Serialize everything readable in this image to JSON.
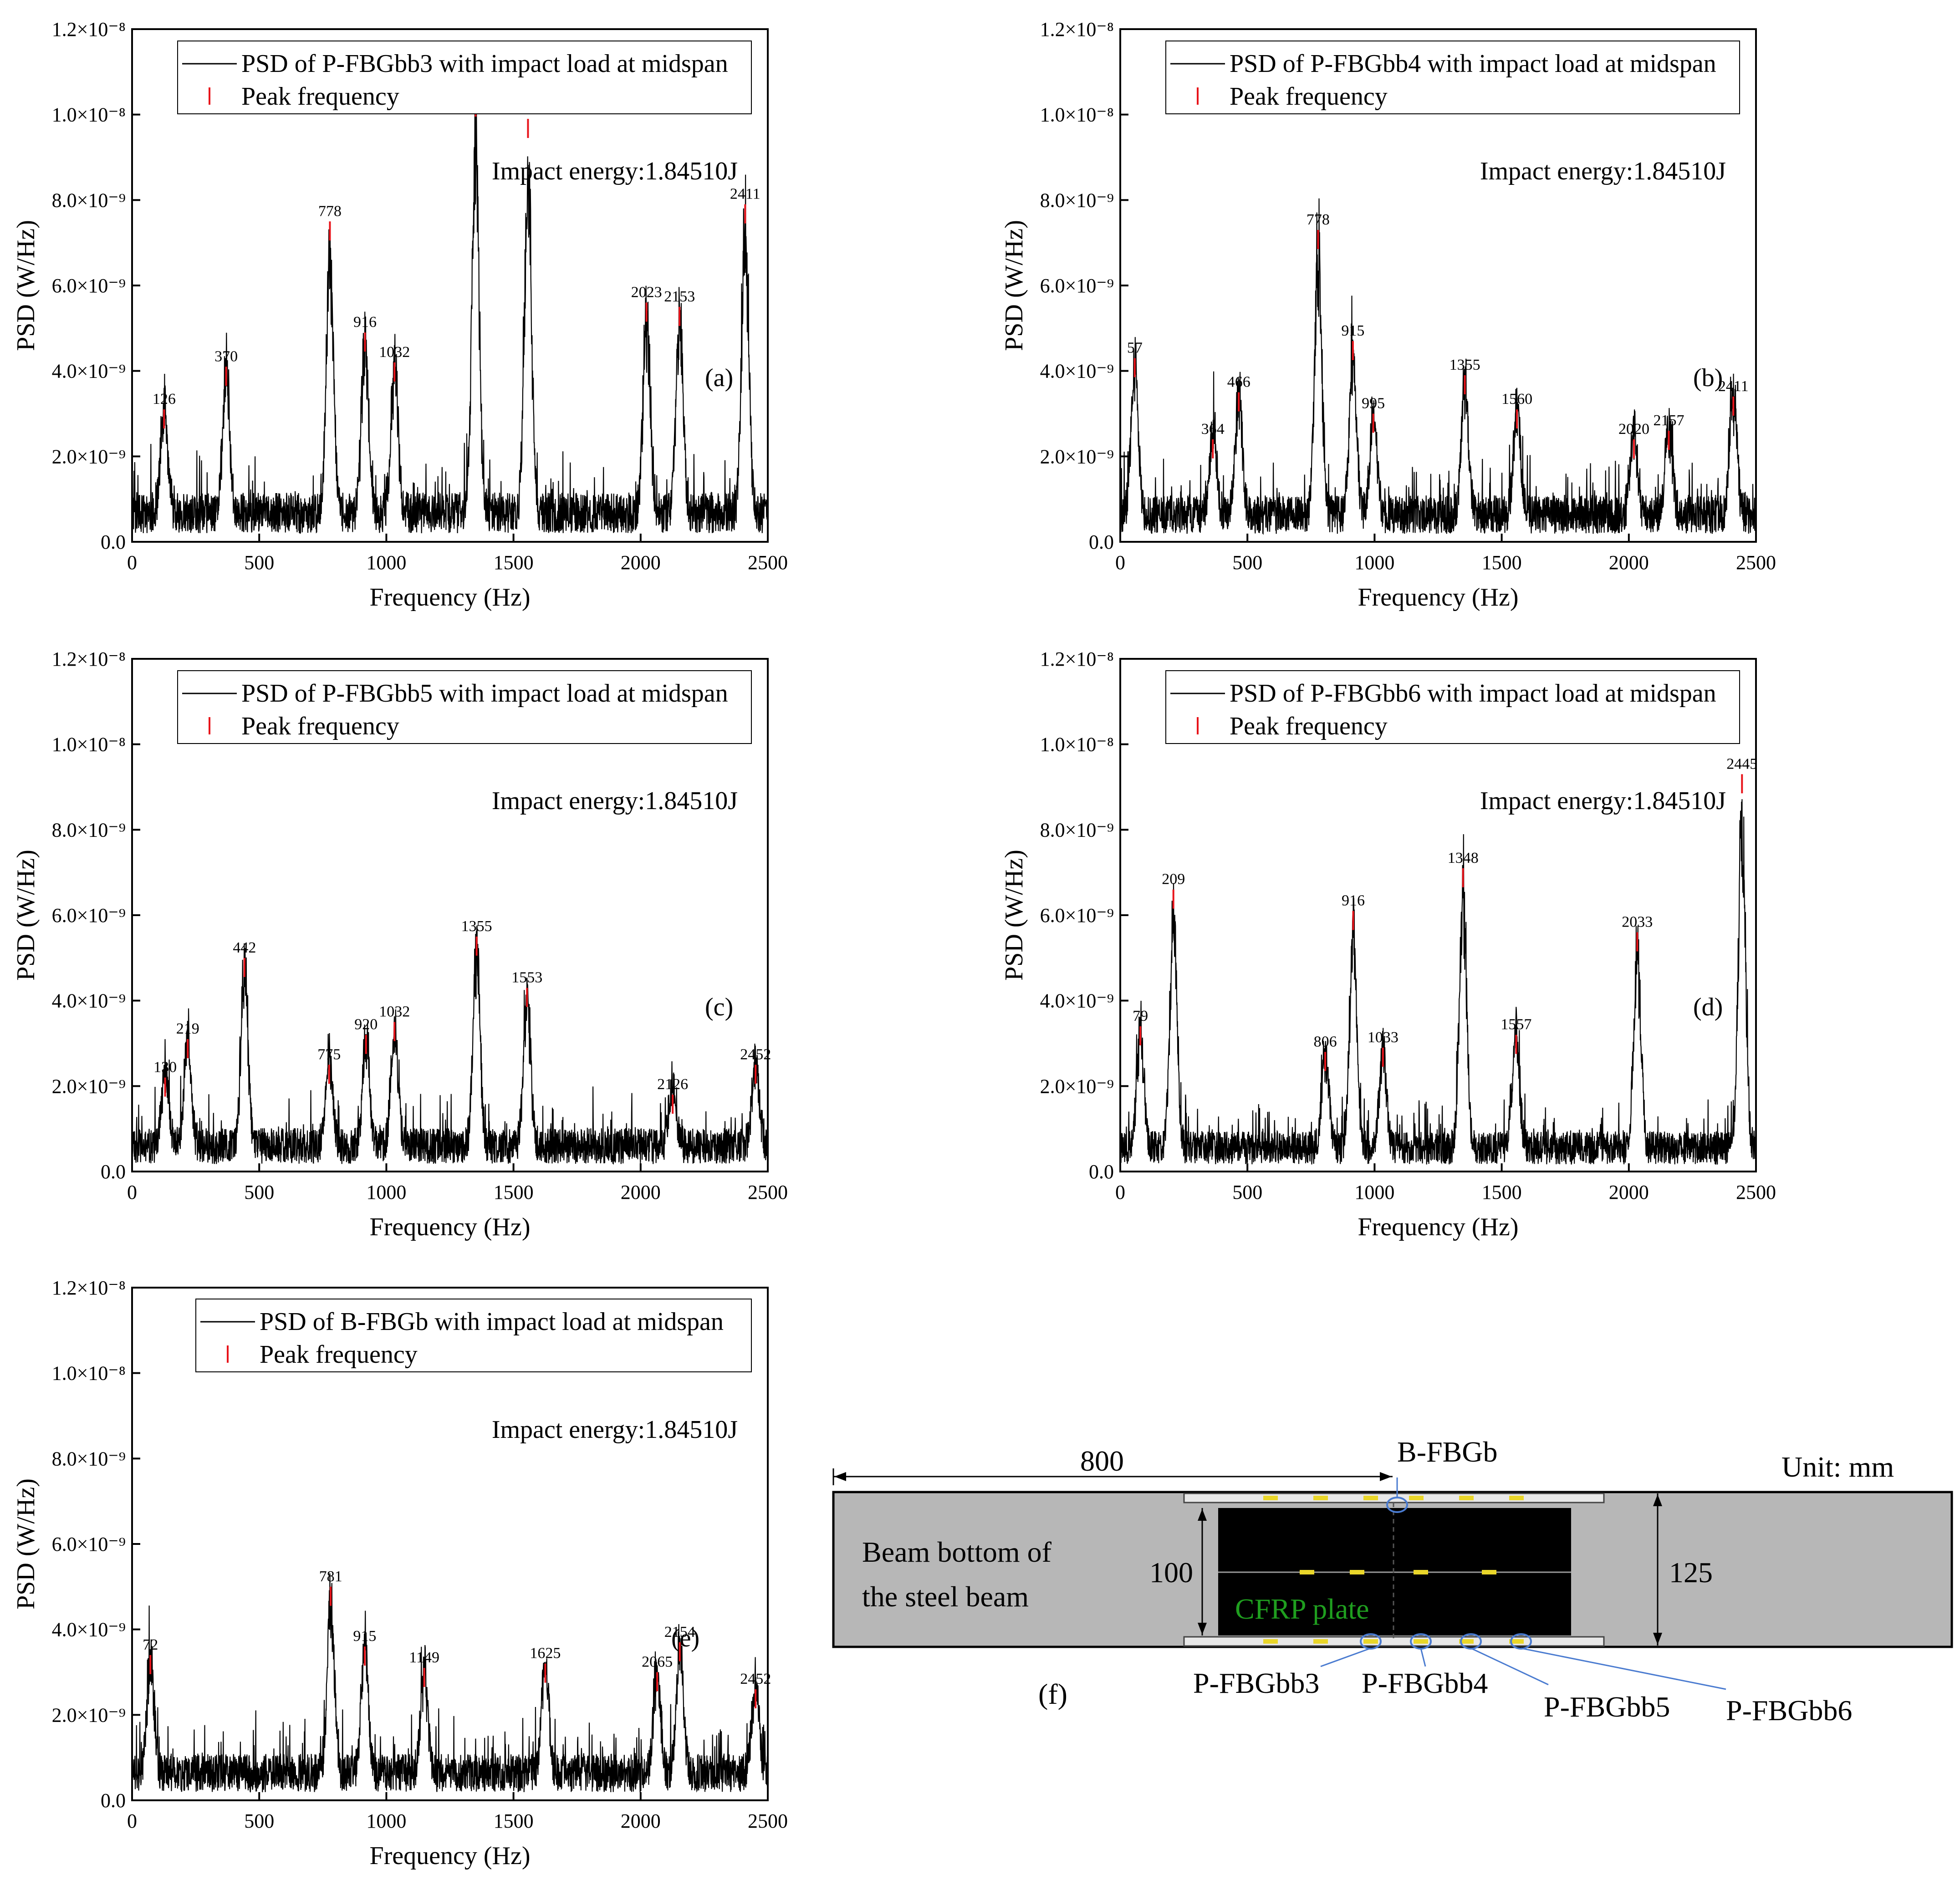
{
  "chart_data": [
    {
      "type": "line",
      "panel": "(a)",
      "series_label": "PSD of P-FBGbb3 with impact load at midspan",
      "peak_label": "Peak frequency",
      "annotation": "Impact energy:1.84510J",
      "xlabel": "Frequency (Hz)",
      "ylabel": "PSD (W/Hz)",
      "xlim": [
        0,
        2500
      ],
      "ylim": [
        0,
        1.2e-08
      ],
      "baseline": 8e-10,
      "peaks": [
        {
          "f": 126,
          "v": 3.1e-09
        },
        {
          "f": 370,
          "v": 4.1e-09
        },
        {
          "f": 778,
          "v": 7.5e-09
        },
        {
          "f": 916,
          "v": 4.9e-09
        },
        {
          "f": 1032,
          "v": 4.2e-09
        },
        {
          "f": 1351,
          "v": 1.04e-08
        },
        {
          "f": 1557,
          "v": 9.9e-09
        },
        {
          "f": 2023,
          "v": 5.6e-09
        },
        {
          "f": 2153,
          "v": 5.5e-09
        },
        {
          "f": 2411,
          "v": 7.9e-09
        }
      ]
    },
    {
      "type": "line",
      "panel": "(b)",
      "series_label": "PSD of P-FBGbb4 with impact load at midspan",
      "peak_label": "Peak frequency",
      "annotation": "Impact energy:1.84510J",
      "xlabel": "Frequency (Hz)",
      "ylabel": "PSD (W/Hz)",
      "xlim": [
        0,
        2500
      ],
      "ylim": [
        0,
        1.2e-08
      ],
      "baseline": 7.5e-10,
      "peaks": [
        {
          "f": 57,
          "v": 4.3e-09
        },
        {
          "f": 364,
          "v": 2.4e-09
        },
        {
          "f": 466,
          "v": 3.5e-09
        },
        {
          "f": 778,
          "v": 7.3e-09
        },
        {
          "f": 915,
          "v": 4.7e-09
        },
        {
          "f": 995,
          "v": 3e-09
        },
        {
          "f": 1355,
          "v": 3.9e-09
        },
        {
          "f": 1560,
          "v": 3.1e-09
        },
        {
          "f": 2020,
          "v": 2.4e-09
        },
        {
          "f": 2157,
          "v": 2.6e-09
        },
        {
          "f": 2411,
          "v": 3.4e-09
        }
      ]
    },
    {
      "type": "line",
      "panel": "(c)",
      "series_label": "PSD of P-FBGbb5 with impact load at midspan",
      "peak_label": "Peak frequency",
      "annotation": "Impact energy:1.84510J",
      "xlabel": "Frequency (Hz)",
      "ylabel": "PSD (W/Hz)",
      "xlim": [
        0,
        2500
      ],
      "ylim": [
        0,
        1.2e-08
      ],
      "baseline": 7e-10,
      "peaks": [
        {
          "f": 130,
          "v": 2.2e-09
        },
        {
          "f": 219,
          "v": 3.1e-09
        },
        {
          "f": 442,
          "v": 5e-09
        },
        {
          "f": 775,
          "v": 2.5e-09
        },
        {
          "f": 920,
          "v": 3.2e-09
        },
        {
          "f": 1032,
          "v": 3.5e-09
        },
        {
          "f": 1355,
          "v": 5.5e-09
        },
        {
          "f": 1553,
          "v": 4.3e-09
        },
        {
          "f": 2126,
          "v": 1.8e-09
        },
        {
          "f": 2452,
          "v": 2.5e-09
        }
      ]
    },
    {
      "type": "line",
      "panel": "(d)",
      "series_label": "PSD of P-FBGbb6 with impact load at midspan",
      "peak_label": "Peak frequency",
      "annotation": "Impact energy:1.84510J",
      "xlabel": "Frequency (Hz)",
      "ylabel": "PSD (W/Hz)",
      "xlim": [
        0,
        2500
      ],
      "ylim": [
        0,
        1.2e-08
      ],
      "baseline": 6.5e-10,
      "peaks": [
        {
          "f": 79,
          "v": 3.4e-09
        },
        {
          "f": 209,
          "v": 6.6e-09
        },
        {
          "f": 806,
          "v": 2.8e-09
        },
        {
          "f": 916,
          "v": 6.1e-09
        },
        {
          "f": 1033,
          "v": 2.9e-09
        },
        {
          "f": 1348,
          "v": 7.1e-09
        },
        {
          "f": 1557,
          "v": 3.2e-09
        },
        {
          "f": 2033,
          "v": 5.6e-09
        },
        {
          "f": 2445,
          "v": 9.3e-09
        }
      ]
    },
    {
      "type": "line",
      "panel": "(e)",
      "series_label": "PSD of B-FBGb with impact load at midspan",
      "peak_label": "Peak frequency",
      "annotation": "Impact energy:1.84510J",
      "xlabel": "Frequency (Hz)",
      "ylabel": "PSD (W/Hz)",
      "xlim": [
        0,
        2500
      ],
      "ylim": [
        0,
        1.2e-08
      ],
      "baseline": 7.5e-10,
      "peaks": [
        {
          "f": 72,
          "v": 3.4e-09
        },
        {
          "f": 781,
          "v": 5e-09
        },
        {
          "f": 915,
          "v": 3.6e-09
        },
        {
          "f": 1149,
          "v": 3.1e-09
        },
        {
          "f": 1625,
          "v": 3.2e-09
        },
        {
          "f": 2065,
          "v": 3e-09
        },
        {
          "f": 2154,
          "v": 3.7e-09
        },
        {
          "f": 2452,
          "v": 2.6e-09
        }
      ]
    }
  ],
  "axis_ticks": {
    "x": [
      "0",
      "500",
      "1000",
      "1500",
      "2000",
      "2500"
    ],
    "y": [
      "0.0",
      "2.0×10⁻⁹",
      "4.0×10⁻⁹",
      "6.0×10⁻⁹",
      "8.0×10⁻⁹",
      "1.0×10⁻⁸",
      "1.2×10⁻⁸"
    ]
  },
  "diagram": {
    "panel": "(f)",
    "unit": "Unit: mm",
    "dim_length": "800",
    "dim_cfrp_width": "100",
    "dim_beam_width": "125",
    "beam_label_line1": "Beam bottom of",
    "beam_label_line2": "the steel beam",
    "cfrp_label": "CFRP plate",
    "sensor_top": "B-FBGb",
    "sensors_bottom": [
      "P-FBGbb3",
      "P-FBGbb4",
      "P-FBGbb5",
      "P-FBGbb6"
    ]
  },
  "colors": {
    "signal": "#000000",
    "peak_marker": "#e8141b",
    "beam_fill": "#b7b7b7",
    "cfrp_fill": "#000000",
    "cfrp_text": "#1f9e1f",
    "sensor_dot": "#e9d62a",
    "leader_line": "#4a7bd0"
  }
}
